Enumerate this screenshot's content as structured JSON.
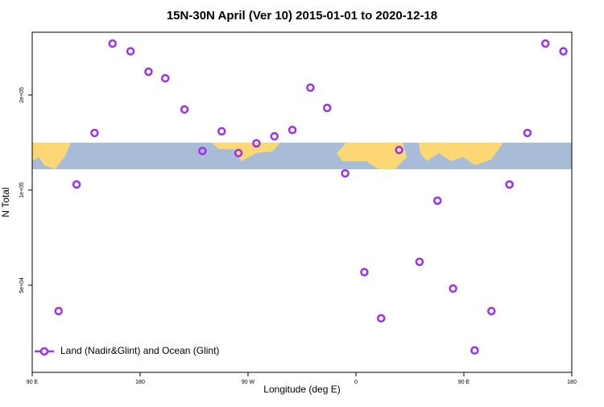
{
  "chart_data": {
    "type": "scatter",
    "title": "15N-30N April (Ver 10)   2015-01-01 to 2020-12-18",
    "xlabel": "Longitude (deg E)",
    "ylabel": "N Total",
    "xlim": [
      90,
      540
    ],
    "xticks": [
      {
        "value": 90,
        "label": "90 E"
      },
      180,
      {
        "value": 270,
        "label": "90 W"
      },
      {
        "value": 360,
        "label": "0"
      },
      {
        "value": 450,
        "label": "90 E"
      },
      {
        "value": 540,
        "label": "180"
      }
    ],
    "ylim": [
      26500,
      316000
    ],
    "ylog": true,
    "yticks": [
      {
        "value": 50000,
        "label": "5e+04"
      },
      {
        "value": 100000,
        "label": "1e+05"
      },
      {
        "value": 200000,
        "label": "2e+05"
      }
    ],
    "legend": "bottom-left",
    "series": [
      {
        "name": "Land (Nadir&Glint) and Ocean (Glint)",
        "color": "#9b30f0",
        "x": [
          112,
          127,
          142,
          157,
          172,
          187,
          201,
          217,
          232,
          248,
          262,
          277,
          292,
          307,
          322,
          336,
          351,
          367,
          381,
          396,
          413,
          428,
          441,
          459,
          473,
          488,
          503,
          518,
          533
        ],
        "values": [
          41400,
          104200,
          151700,
          291000,
          275000,
          237000,
          226000,
          180000,
          133000,
          153500,
          131000,
          140600,
          148000,
          155000,
          211000,
          182000,
          113000,
          55000,
          39300,
          134000,
          59300,
          92600,
          48800,
          31100,
          41400,
          104200,
          151700,
          291000,
          275000
        ]
      }
    ]
  }
}
